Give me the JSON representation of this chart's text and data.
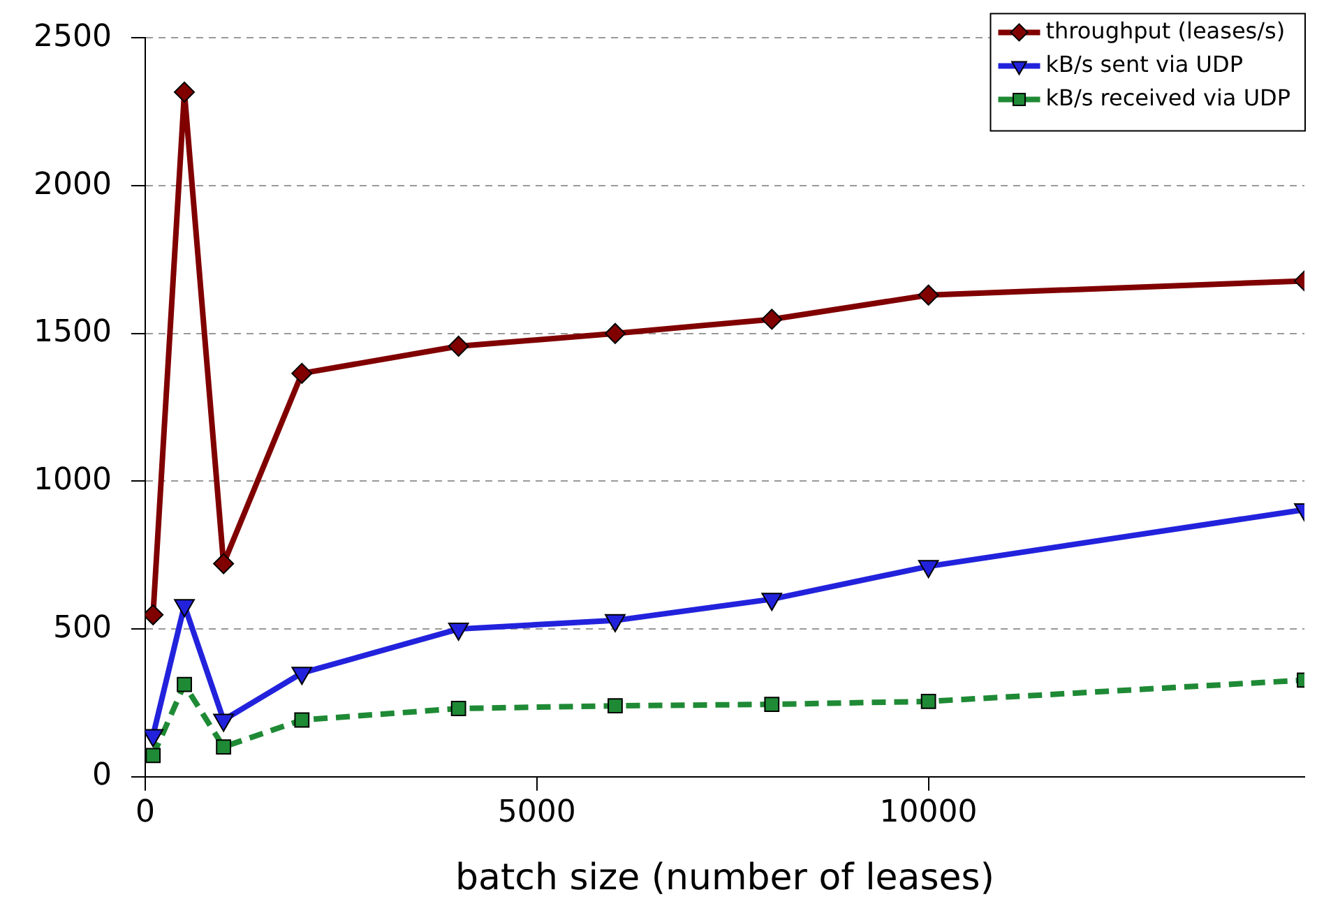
{
  "chart_data": {
    "type": "line",
    "xlabel": "batch size (number of leases)",
    "xlim": [
      0,
      14800
    ],
    "xticks": [
      0,
      5000,
      10000
    ],
    "ylim": [
      0,
      2500
    ],
    "yticks": [
      0,
      500,
      1000,
      1500,
      2000,
      2500
    ],
    "grid": "y",
    "legend": "top right",
    "series": [
      {
        "name": "throughput (leases/s)",
        "color": "#800000",
        "marker": "diamond",
        "line_style": "solid",
        "x": [
          100,
          500,
          1000,
          2000,
          4000,
          6000,
          8000,
          10000,
          14800
        ],
        "values": [
          548,
          2317,
          721,
          1365,
          1457,
          1500,
          1548,
          1630,
          1678
        ]
      },
      {
        "name": "kB/s sent via UDP",
        "color": "#2222dd",
        "marker": "triangle",
        "line_style": "solid",
        "x": [
          100,
          500,
          1000,
          2000,
          4000,
          6000,
          8000,
          10000,
          14800
        ],
        "values": [
          140,
          580,
          192,
          351,
          500,
          529,
          601,
          712,
          904
        ]
      },
      {
        "name": "kB/s received via UDP",
        "color": "#1f8a35",
        "marker": "square",
        "line_style": "dashed",
        "x": [
          100,
          500,
          1000,
          2000,
          4000,
          6000,
          8000,
          10000,
          14800
        ],
        "values": [
          72,
          312,
          101,
          192,
          231,
          240,
          245,
          255,
          327
        ]
      }
    ]
  }
}
